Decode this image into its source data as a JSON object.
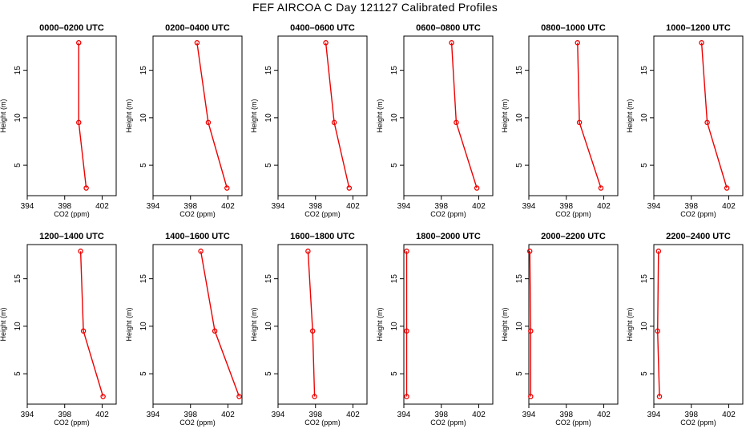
{
  "title": "FEF AIRCOA C  Day 121127  Calibrated Profiles",
  "colors": {
    "profile": "#ee0000",
    "frame": "#000000"
  },
  "chart_data": [
    {
      "type": "line",
      "title": "0000–0200 UTC",
      "xlabel": "CO2 (ppm)",
      "ylabel": "Height (m)",
      "xlim": [
        394,
        403.5
      ],
      "ylim": [
        1.8,
        18.6
      ],
      "xticks": [
        394,
        398,
        402
      ],
      "xticklabels": [
        "394",
        "398",
        "402"
      ],
      "yticks": [
        5,
        10,
        15
      ],
      "series": [
        {
          "x": [
            399.5,
            399.5,
            400.3
          ],
          "y": [
            17.9,
            9.5,
            2.6
          ]
        }
      ]
    },
    {
      "type": "line",
      "title": "0200–0400 UTC",
      "xlabel": "CO2 (ppm)",
      "ylabel": "Height (m)",
      "xlim": [
        394,
        403.5
      ],
      "ylim": [
        1.8,
        18.6
      ],
      "xticks": [
        394,
        398,
        402
      ],
      "xticklabels": [
        "394",
        "398",
        "402"
      ],
      "yticks": [
        5,
        10,
        15
      ],
      "series": [
        {
          "x": [
            398.7,
            399.9,
            401.9
          ],
          "y": [
            17.9,
            9.5,
            2.6
          ]
        }
      ]
    },
    {
      "type": "line",
      "title": "0400–0600 UTC",
      "xlabel": "CO2 (ppm)",
      "ylabel": "Height (m)",
      "xlim": [
        394,
        403.5
      ],
      "ylim": [
        1.8,
        18.6
      ],
      "xticks": [
        394,
        398,
        402
      ],
      "xticklabels": [
        "394",
        "398",
        "402"
      ],
      "yticks": [
        5,
        10,
        15
      ],
      "series": [
        {
          "x": [
            399.1,
            400.0,
            401.6
          ],
          "y": [
            17.9,
            9.5,
            2.6
          ]
        }
      ]
    },
    {
      "type": "line",
      "title": "0600–0800 UTC",
      "xlabel": "CO2 (ppm)",
      "ylabel": "Height (m)",
      "xlim": [
        394,
        403.5
      ],
      "ylim": [
        1.8,
        18.6
      ],
      "xticks": [
        394,
        398,
        402
      ],
      "xticklabels": [
        "394",
        "398",
        "402"
      ],
      "yticks": [
        5,
        10,
        15
      ],
      "series": [
        {
          "x": [
            399.1,
            399.6,
            401.8
          ],
          "y": [
            17.9,
            9.5,
            2.6
          ]
        }
      ]
    },
    {
      "type": "line",
      "title": "0800–1000 UTC",
      "xlabel": "CO2 (ppm)",
      "ylabel": "Height (m)",
      "xlim": [
        394,
        403.5
      ],
      "ylim": [
        1.8,
        18.6
      ],
      "xticks": [
        394,
        398,
        402
      ],
      "xticklabels": [
        "394",
        "398",
        "402"
      ],
      "yticks": [
        5,
        10,
        15
      ],
      "series": [
        {
          "x": [
            399.2,
            399.4,
            401.7
          ],
          "y": [
            17.9,
            9.5,
            2.6
          ]
        }
      ]
    },
    {
      "type": "line",
      "title": "1000–1200 UTC",
      "xlabel": "CO2 (ppm)",
      "ylabel": "Height (m)",
      "xlim": [
        394,
        403.5
      ],
      "ylim": [
        1.8,
        18.6
      ],
      "xticks": [
        394,
        398,
        402
      ],
      "xticklabels": [
        "394",
        "398",
        "402"
      ],
      "yticks": [
        5,
        10,
        15
      ],
      "series": [
        {
          "x": [
            399.1,
            399.7,
            401.8
          ],
          "y": [
            17.9,
            9.5,
            2.6
          ]
        }
      ]
    },
    {
      "type": "line",
      "title": "1200–1400 UTC",
      "xlabel": "CO2 (ppm)",
      "ylabel": "Height (m)",
      "xlim": [
        394,
        403.5
      ],
      "ylim": [
        1.8,
        18.6
      ],
      "xticks": [
        394,
        398,
        402
      ],
      "xticklabels": [
        "394",
        "398",
        "402"
      ],
      "yticks": [
        5,
        10,
        15
      ],
      "series": [
        {
          "x": [
            399.7,
            400.0,
            402.1
          ],
          "y": [
            17.9,
            9.5,
            2.6
          ]
        }
      ]
    },
    {
      "type": "line",
      "title": "1400–1600 UTC",
      "xlabel": "CO2 (ppm)",
      "ylabel": "Height (m)",
      "xlim": [
        394,
        403.5
      ],
      "ylim": [
        1.8,
        18.6
      ],
      "xticks": [
        394,
        398,
        402
      ],
      "xticklabels": [
        "394",
        "398",
        "402"
      ],
      "yticks": [
        5,
        10,
        15
      ],
      "series": [
        {
          "x": [
            399.1,
            400.6,
            403.2
          ],
          "y": [
            17.9,
            9.5,
            2.6
          ]
        }
      ]
    },
    {
      "type": "line",
      "title": "1600–1800 UTC",
      "xlabel": "CO2 (ppm)",
      "ylabel": "Height (m)",
      "xlim": [
        394,
        403.5
      ],
      "ylim": [
        1.8,
        18.6
      ],
      "xticks": [
        394,
        398,
        402
      ],
      "xticklabels": [
        "394",
        "398",
        "402"
      ],
      "yticks": [
        5,
        10,
        15
      ],
      "series": [
        {
          "x": [
            397.2,
            397.7,
            397.9
          ],
          "y": [
            17.9,
            9.5,
            2.6
          ]
        }
      ]
    },
    {
      "type": "line",
      "title": "1800–2000 UTC",
      "xlabel": "CO2 (ppm)",
      "ylabel": "Height (m)",
      "xlim": [
        394,
        403.5
      ],
      "ylim": [
        1.8,
        18.6
      ],
      "xticks": [
        394,
        398,
        402
      ],
      "xticklabels": [
        "394",
        "398",
        "402"
      ],
      "yticks": [
        5,
        10,
        15
      ],
      "series": [
        {
          "x": [
            394.3,
            394.3,
            394.3
          ],
          "y": [
            17.9,
            9.5,
            2.6
          ]
        }
      ]
    },
    {
      "type": "line",
      "title": "2000–2200 UTC",
      "xlabel": "CO2 (ppm)",
      "ylabel": "Height (m)",
      "xlim": [
        394,
        403.5
      ],
      "ylim": [
        1.8,
        18.6
      ],
      "xticks": [
        394,
        398,
        402
      ],
      "xticklabels": [
        "394",
        "398",
        "402"
      ],
      "yticks": [
        5,
        10,
        15
      ],
      "series": [
        {
          "x": [
            394.1,
            394.2,
            394.2
          ],
          "y": [
            17.9,
            9.5,
            2.6
          ]
        }
      ]
    },
    {
      "type": "line",
      "title": "2200–2400 UTC",
      "xlabel": "CO2 (ppm)",
      "ylabel": "Height (m)",
      "xlim": [
        394,
        403.5
      ],
      "ylim": [
        1.8,
        18.6
      ],
      "xticks": [
        394,
        398,
        402
      ],
      "xticklabels": [
        "394",
        "398",
        "402"
      ],
      "yticks": [
        5,
        10,
        15
      ],
      "series": [
        {
          "x": [
            394.5,
            394.4,
            394.6
          ],
          "y": [
            17.9,
            9.5,
            2.6
          ]
        }
      ]
    }
  ]
}
